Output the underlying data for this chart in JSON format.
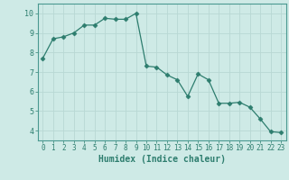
{
  "x": [
    0,
    1,
    2,
    3,
    4,
    5,
    6,
    7,
    8,
    9,
    10,
    11,
    12,
    13,
    14,
    15,
    16,
    17,
    18,
    19,
    20,
    21,
    22,
    23
  ],
  "y": [
    7.7,
    8.7,
    8.8,
    9.0,
    9.4,
    9.4,
    9.75,
    9.7,
    9.7,
    10.0,
    7.3,
    7.25,
    6.85,
    6.6,
    5.75,
    6.9,
    6.6,
    5.4,
    5.4,
    5.45,
    5.2,
    4.6,
    3.95,
    3.9
  ],
  "line_color": "#2d7d6e",
  "marker": "D",
  "marker_size": 2.5,
  "bg_color": "#ceeae6",
  "grid_color_major": "#b8d8d4",
  "grid_color_minor": "#d8eeeb",
  "xlabel": "Humidex (Indice chaleur)",
  "xlabel_fontsize": 7,
  "tick_fontsize": 6,
  "tick_color": "#2d7d6e",
  "axis_color": "#4a9990",
  "ylim": [
    3.5,
    10.5
  ],
  "xlim": [
    -0.5,
    23.5
  ],
  "yticks": [
    4,
    5,
    6,
    7,
    8,
    9,
    10
  ],
  "xticks": [
    0,
    1,
    2,
    3,
    4,
    5,
    6,
    7,
    8,
    9,
    10,
    11,
    12,
    13,
    14,
    15,
    16,
    17,
    18,
    19,
    20,
    21,
    22,
    23
  ]
}
